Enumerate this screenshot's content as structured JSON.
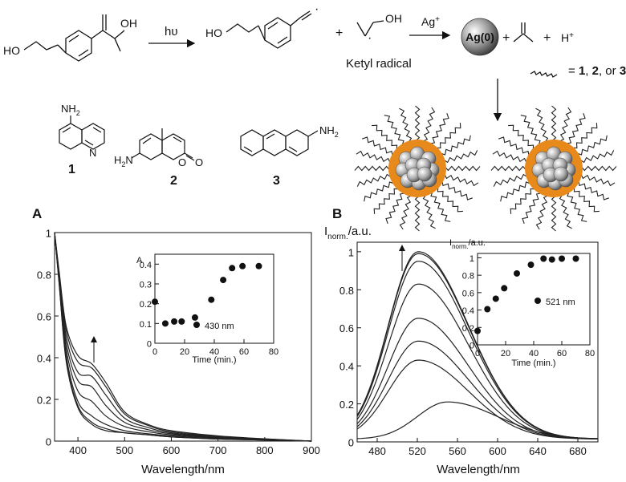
{
  "scheme": {
    "reagent_oh": "OH",
    "reagent_ho": "HO",
    "hv": "hυ",
    "product_ho": "HO",
    "plus1": "+",
    "ketyl_oh": "OH",
    "ketyl_label": "Ketyl radical",
    "ag_ion": "Ag",
    "ag_ion_sup": "+",
    "ag0": "Ag(0)",
    "plus2": "+",
    "plus3": "+",
    "h_ion": "H",
    "h_ion_sup": "+",
    "ligand_eq": "= ",
    "ligand_1": "1",
    "ligand_sep1": ", ",
    "ligand_2": "2",
    "ligand_sep2": ", or ",
    "ligand_3": "3"
  },
  "structures": {
    "s1_sub": "NH",
    "s1_sub2": "2",
    "s1_n": "N",
    "s1_num": "1",
    "s2_sub": "H",
    "s2_sub2": "2",
    "s2_n": "N",
    "s2_o": "O",
    "s2_o2": "O",
    "s2_num": "2",
    "s3_sub": "NH",
    "s3_sub2": "2",
    "s3_num": "3"
  },
  "panels": [
    {
      "letter": "A",
      "xlabel": "Wavelength/nm",
      "ylabel": "",
      "xticks": [
        "400",
        "500",
        "600",
        "700",
        "800",
        "900"
      ],
      "yticks": [
        "0",
        "0.2",
        "0.4",
        "0.6",
        "0.8",
        "1"
      ],
      "inset": {
        "ylabel": "A",
        "xlabel": "Time (min.)",
        "xticks": [
          "0",
          "20",
          "40",
          "60",
          "80"
        ],
        "yticks": [
          "0",
          "0.1",
          "0.2",
          "0.3",
          "0.4"
        ],
        "legend": "430 nm"
      }
    },
    {
      "letter": "B",
      "ylabel_main": "I",
      "ylabel_sub": "norm.",
      "ylabel_unit": "/a.u.",
      "xlabel": "Wavelength/nm",
      "xticks": [
        "480",
        "520",
        "560",
        "600",
        "640",
        "680"
      ],
      "yticks": [
        "0",
        "0.2",
        "0.4",
        "0.6",
        "0.8",
        "1"
      ],
      "inset": {
        "ylabel_main": "I",
        "ylabel_sub": "norm.",
        "ylabel_unit": "/a.u.",
        "xlabel": "Time (min.)",
        "xticks": [
          "0",
          "20",
          "40",
          "60",
          "80"
        ],
        "yticks": [
          "0",
          "0.2",
          "0.4",
          "0.6",
          "0.8",
          "1"
        ],
        "legend": "521 nm"
      }
    }
  ],
  "chart_data": [
    {
      "type": "line",
      "title": "",
      "xlabel": "Wavelength/nm",
      "ylabel": "",
      "xlim": [
        350,
        900
      ],
      "ylim": [
        0,
        1
      ],
      "grid": false,
      "note": "absorption spectra; arrow at ~430 nm indicates increase with time",
      "series": [
        {
          "x": [
            350,
            360,
            375,
            400,
            430,
            460,
            500,
            550,
            600,
            700,
            800,
            900
          ],
          "values": [
            1.0,
            0.75,
            0.38,
            0.16,
            0.08,
            0.05,
            0.04,
            0.03,
            0.02,
            0.01,
            0.005,
            0.0
          ]
        },
        {
          "x": [
            350,
            360,
            375,
            400,
            430,
            460,
            500,
            550,
            600,
            700,
            800,
            900
          ],
          "values": [
            1.0,
            0.75,
            0.39,
            0.17,
            0.09,
            0.06,
            0.04,
            0.03,
            0.02,
            0.01,
            0.005,
            0.0
          ]
        },
        {
          "x": [
            350,
            360,
            375,
            400,
            430,
            460,
            500,
            550,
            600,
            700,
            800,
            900
          ],
          "values": [
            1.0,
            0.76,
            0.41,
            0.19,
            0.12,
            0.08,
            0.05,
            0.035,
            0.025,
            0.012,
            0.006,
            0.0
          ]
        },
        {
          "x": [
            350,
            360,
            375,
            400,
            430,
            460,
            500,
            550,
            600,
            700,
            800,
            900
          ],
          "values": [
            1.0,
            0.77,
            0.44,
            0.24,
            0.19,
            0.12,
            0.07,
            0.045,
            0.03,
            0.015,
            0.007,
            0.0
          ]
        },
        {
          "x": [
            350,
            360,
            375,
            400,
            430,
            460,
            500,
            550,
            600,
            700,
            800,
            900
          ],
          "values": [
            1.0,
            0.78,
            0.47,
            0.29,
            0.26,
            0.17,
            0.09,
            0.055,
            0.035,
            0.017,
            0.008,
            0.0
          ]
        },
        {
          "x": [
            350,
            360,
            375,
            400,
            430,
            460,
            500,
            550,
            600,
            700,
            800,
            900
          ],
          "values": [
            1.0,
            0.79,
            0.5,
            0.33,
            0.31,
            0.22,
            0.11,
            0.065,
            0.04,
            0.02,
            0.009,
            0.0
          ]
        },
        {
          "x": [
            350,
            360,
            375,
            400,
            430,
            460,
            500,
            550,
            600,
            700,
            800,
            900
          ],
          "values": [
            1.0,
            0.8,
            0.53,
            0.38,
            0.35,
            0.26,
            0.13,
            0.075,
            0.045,
            0.022,
            0.01,
            0.0
          ]
        },
        {
          "x": [
            350,
            360,
            375,
            400,
            430,
            460,
            500,
            550,
            600,
            700,
            800,
            900
          ],
          "values": [
            1.0,
            0.81,
            0.55,
            0.41,
            0.37,
            0.28,
            0.14,
            0.08,
            0.05,
            0.025,
            0.011,
            0.0
          ]
        }
      ]
    },
    {
      "type": "scatter",
      "title": "",
      "xlabel": "Time (min.)",
      "ylabel": "A",
      "xlim": [
        0,
        80
      ],
      "ylim": [
        0,
        0.45
      ],
      "legend": "430 nm",
      "x": [
        0,
        7,
        13,
        18,
        27,
        38,
        46,
        52,
        59,
        70
      ],
      "values": [
        0.21,
        0.1,
        0.11,
        0.11,
        0.13,
        0.22,
        0.32,
        0.38,
        0.39,
        0.39
      ]
    },
    {
      "type": "line",
      "title": "",
      "xlabel": "Wavelength/nm",
      "ylabel": "I norm./a.u.",
      "xlim": [
        460,
        700
      ],
      "ylim": [
        0,
        1.05
      ],
      "grid": false,
      "note": "fluorescence spectra; arrow near 508 nm indicates increase with time",
      "peaks": [
        0.21,
        0.43,
        0.53,
        0.65,
        0.83,
        0.95,
        0.99,
        1.0
      ],
      "peak_x": [
        550,
        521,
        521,
        521,
        521,
        521,
        521,
        521
      ]
    },
    {
      "type": "scatter",
      "title": "",
      "xlabel": "Time (min.)",
      "ylabel": "I norm./a.u.",
      "xlim": [
        0,
        80
      ],
      "ylim": [
        0,
        1.05
      ],
      "legend": "521 nm",
      "x": [
        0,
        7,
        13,
        19,
        28,
        38,
        47,
        53,
        60,
        70
      ],
      "values": [
        0.16,
        0.41,
        0.53,
        0.65,
        0.82,
        0.92,
        0.99,
        0.98,
        0.99,
        0.99
      ]
    }
  ]
}
